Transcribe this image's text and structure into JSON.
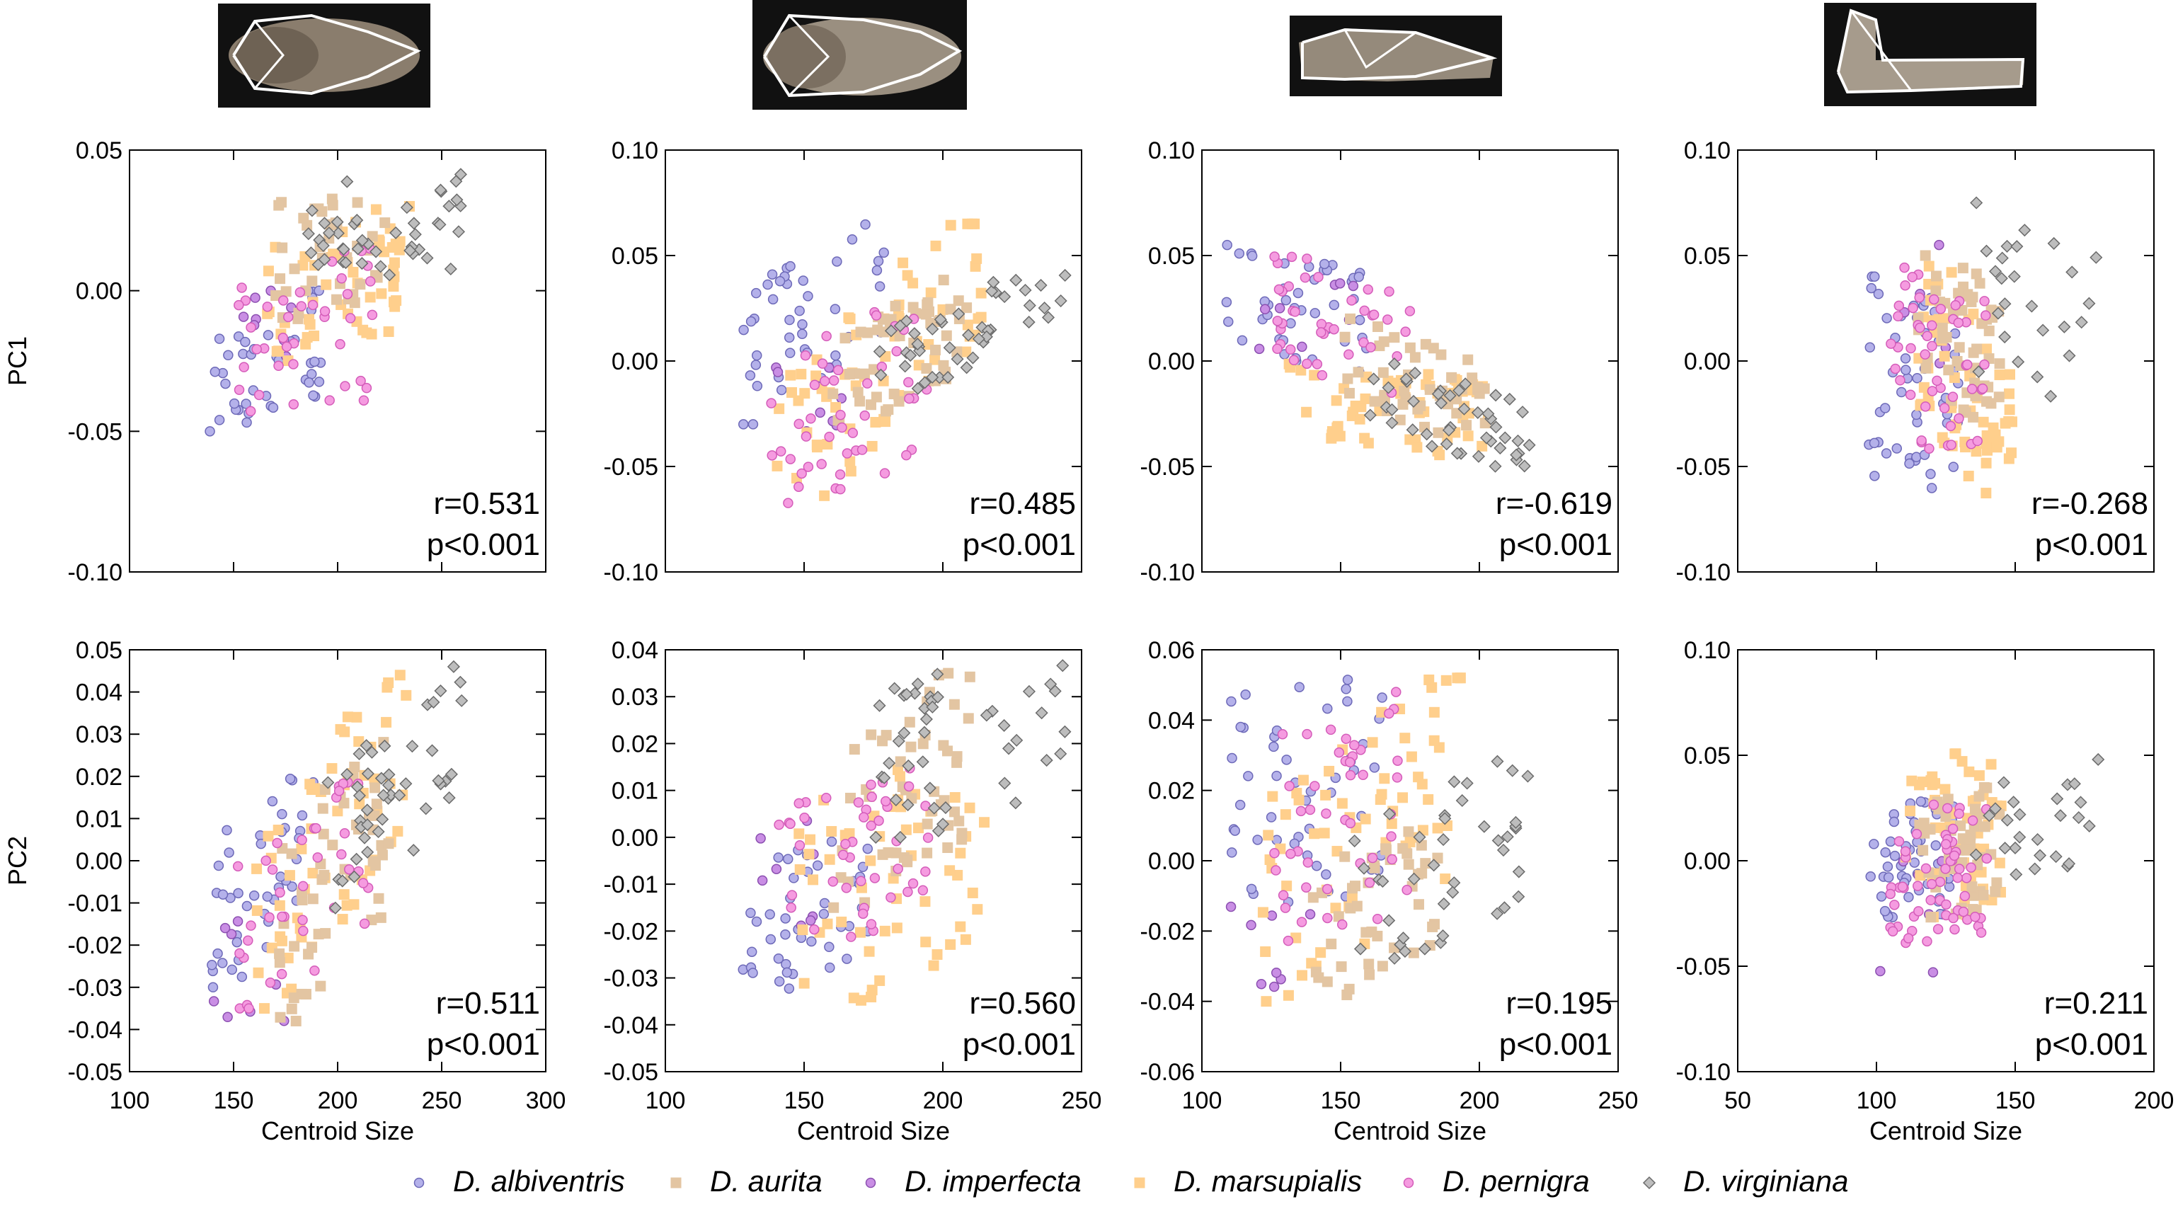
{
  "colors": {
    "D. albiventris": "#b4b1ea",
    "D. aurita": "#e3c5a2",
    "D. imperfecta": "#c98ee4",
    "D. marsupialis": "#ffcf8c",
    "D. pernigra": "#f59be0",
    "D. virginiana": "#bdbdbd"
  },
  "legend": {
    "items": [
      {
        "name": "D. albiventris",
        "shape": "circle"
      },
      {
        "name": "D. aurita",
        "shape": "square"
      },
      {
        "name": "D. imperfecta",
        "shape": "circle"
      },
      {
        "name": "D. marsupialis",
        "shape": "square"
      },
      {
        "name": "D. pernigra",
        "shape": "circle"
      },
      {
        "name": "D. virginiana",
        "shape": "diamond"
      }
    ]
  },
  "row_labels": [
    "PC1",
    "PC2"
  ],
  "chart_data": [
    {
      "type": "scatter",
      "row": 0,
      "col": 0,
      "ylabel": "PC1",
      "xlabel": "",
      "xlim": [
        100,
        300
      ],
      "ylim": [
        -0.1,
        0.05
      ],
      "xticks": [
        150,
        200,
        250
      ],
      "yticks": [
        "0.05",
        "0.00",
        "-0.05",
        "-0.10"
      ],
      "r": "r=0.531",
      "p": "p<0.001",
      "clusters": [
        {
          "species": "D. albiventris",
          "x_range": [
            138,
            192
          ],
          "y_range": [
            -0.05,
            0.0
          ],
          "n": 42,
          "trend": 0.3
        },
        {
          "species": "D. imperfecta",
          "x_range": [
            150,
            185
          ],
          "y_range": [
            -0.025,
            0.01
          ],
          "n": 8,
          "trend": 0.0
        },
        {
          "species": "D. marsupialis",
          "x_range": [
            165,
            235
          ],
          "y_range": [
            -0.025,
            0.03
          ],
          "n": 55,
          "trend": 0.3
        },
        {
          "species": "D. aurita",
          "x_range": [
            170,
            225
          ],
          "y_range": [
            -0.01,
            0.04
          ],
          "n": 40,
          "trend": 0.2
        },
        {
          "species": "D. pernigra",
          "x_range": [
            150,
            220
          ],
          "y_range": [
            -0.045,
            0.015
          ],
          "n": 40,
          "trend": 0.1
        },
        {
          "species": "D. virginiana",
          "x_range": [
            185,
            260
          ],
          "y_range": [
            0.0,
            0.045
          ],
          "n": 45,
          "trend": 0.2
        }
      ]
    },
    {
      "type": "scatter",
      "row": 0,
      "col": 1,
      "ylabel": "",
      "xlabel": "",
      "xlim": [
        100,
        250
      ],
      "ylim": [
        -0.1,
        0.1
      ],
      "xticks": [
        150,
        200
      ],
      "yticks": [
        "0.10",
        "0.05",
        "0.00",
        "-0.05",
        "-0.10"
      ],
      "r": "r=0.485",
      "p": "p<0.001",
      "clusters": [
        {
          "species": "D. albiventris",
          "x_range": [
            128,
            180
          ],
          "y_range": [
            -0.03,
            0.065
          ],
          "n": 45,
          "trend": 0.4
        },
        {
          "species": "D. imperfecta",
          "x_range": [
            135,
            165
          ],
          "y_range": [
            -0.04,
            0.0
          ],
          "n": 8,
          "trend": 0.0
        },
        {
          "species": "D. marsupialis",
          "x_range": [
            140,
            215
          ],
          "y_range": [
            -0.065,
            0.065
          ],
          "n": 65,
          "trend": 0.7
        },
        {
          "species": "D. aurita",
          "x_range": [
            160,
            210
          ],
          "y_range": [
            -0.03,
            0.04
          ],
          "n": 50,
          "trend": 0.5
        },
        {
          "species": "D. pernigra",
          "x_range": [
            138,
            195
          ],
          "y_range": [
            -0.075,
            0.03
          ],
          "n": 45,
          "trend": 0.4
        },
        {
          "species": "D. virginiana",
          "x_range": [
            175,
            245
          ],
          "y_range": [
            -0.015,
            0.045
          ],
          "n": 45,
          "trend": 0.7
        }
      ]
    },
    {
      "type": "scatter",
      "row": 0,
      "col": 2,
      "ylabel": "",
      "xlabel": "",
      "xlim": [
        100,
        250
      ],
      "ylim": [
        -0.1,
        0.1
      ],
      "xticks": [
        150,
        200
      ],
      "yticks": [
        "0.10",
        "0.05",
        "0.00",
        "-0.05",
        "-0.10"
      ],
      "r": "r=-0.619",
      "p": "p<0.001",
      "clusters": [
        {
          "species": "D. albiventris",
          "x_range": [
            108,
            160
          ],
          "y_range": [
            -0.005,
            0.055
          ],
          "n": 45,
          "trend": -0.3
        },
        {
          "species": "D. imperfecta",
          "x_range": [
            120,
            155
          ],
          "y_range": [
            0.0,
            0.04
          ],
          "n": 8,
          "trend": 0.0
        },
        {
          "species": "D. marsupialis",
          "x_range": [
            130,
            205
          ],
          "y_range": [
            -0.045,
            0.0
          ],
          "n": 60,
          "trend": -0.3
        },
        {
          "species": "D. aurita",
          "x_range": [
            150,
            205
          ],
          "y_range": [
            -0.04,
            0.02
          ],
          "n": 45,
          "trend": -0.5
        },
        {
          "species": "D. pernigra",
          "x_range": [
            125,
            175
          ],
          "y_range": [
            -0.015,
            0.05
          ],
          "n": 40,
          "trend": -0.3
        },
        {
          "species": "D. virginiana",
          "x_range": [
            160,
            218
          ],
          "y_range": [
            -0.05,
            0.0
          ],
          "n": 45,
          "trend": -0.5
        }
      ]
    },
    {
      "type": "scatter",
      "row": 0,
      "col": 3,
      "ylabel": "",
      "xlabel": "",
      "xlim": [
        50,
        200
      ],
      "ylim": [
        -0.1,
        0.1
      ],
      "xticks": [
        100,
        150
      ],
      "yticks": [
        "0.10",
        "0.05",
        "0.00",
        "-0.05",
        "-0.10"
      ],
      "r": "r=-0.268",
      "p": "p<0.001",
      "clusters": [
        {
          "species": "D. albiventris",
          "x_range": [
            97,
            130
          ],
          "y_range": [
            -0.07,
            0.04
          ],
          "n": 50,
          "trend": -0.2
        },
        {
          "species": "D. imperfecta",
          "x_range": [
            110,
            130
          ],
          "y_range": [
            -0.02,
            0.065
          ],
          "n": 6,
          "trend": 0.0
        },
        {
          "species": "D. marsupialis",
          "x_range": [
            115,
            150
          ],
          "y_range": [
            -0.075,
            0.05
          ],
          "n": 60,
          "trend": -0.5
        },
        {
          "species": "D. aurita",
          "x_range": [
            115,
            145
          ],
          "y_range": [
            -0.03,
            0.05
          ],
          "n": 50,
          "trend": -0.2
        },
        {
          "species": "D. pernigra",
          "x_range": [
            105,
            140
          ],
          "y_range": [
            -0.05,
            0.045
          ],
          "n": 50,
          "trend": -0.2
        },
        {
          "species": "D. virginiana",
          "x_range": [
            135,
            180
          ],
          "y_range": [
            -0.03,
            0.075
          ],
          "n": 25,
          "trend": -0.3
        }
      ]
    },
    {
      "type": "scatter",
      "row": 1,
      "col": 0,
      "ylabel": "PC2",
      "xlabel": "Centroid Size",
      "xlim": [
        100,
        300
      ],
      "ylim": [
        -0.05,
        0.05
      ],
      "xticks": [
        100,
        150,
        200,
        250,
        300
      ],
      "yticks": [
        "0.05",
        "0.04",
        "0.03",
        "0.02",
        "0.01",
        "0.00",
        "-0.01",
        "-0.02",
        "-0.03",
        "-0.04",
        "-0.05"
      ],
      "r": "r=0.511",
      "p": "p<0.001",
      "clusters": [
        {
          "species": "D. albiventris",
          "x_range": [
            138,
            190
          ],
          "y_range": [
            -0.03,
            0.02
          ],
          "n": 42,
          "trend": 0.4
        },
        {
          "species": "D. imperfecta",
          "x_range": [
            140,
            180
          ],
          "y_range": [
            -0.04,
            -0.01
          ],
          "n": 8,
          "trend": 0.0
        },
        {
          "species": "D. marsupialis",
          "x_range": [
            160,
            235
          ],
          "y_range": [
            -0.035,
            0.044
          ],
          "n": 60,
          "trend": 0.7
        },
        {
          "species": "D. aurita",
          "x_range": [
            170,
            225
          ],
          "y_range": [
            -0.038,
            0.03
          ],
          "n": 50,
          "trend": 0.5
        },
        {
          "species": "D. pernigra",
          "x_range": [
            150,
            215
          ],
          "y_range": [
            -0.035,
            0.02
          ],
          "n": 40,
          "trend": 0.4
        },
        {
          "species": "D. virginiana",
          "x_range": [
            195,
            260
          ],
          "y_range": [
            -0.012,
            0.046
          ],
          "n": 45,
          "trend": 0.6
        }
      ]
    },
    {
      "type": "scatter",
      "row": 1,
      "col": 1,
      "ylabel": "",
      "xlabel": "Centroid Size",
      "xlim": [
        100,
        250
      ],
      "ylim": [
        -0.05,
        0.04
      ],
      "xticks": [
        100,
        150,
        200,
        250
      ],
      "yticks": [
        "0.04",
        "0.03",
        "0.02",
        "0.01",
        "0.00",
        "-0.01",
        "-0.02",
        "-0.03",
        "-0.04",
        "-0.05"
      ],
      "r": "r=0.560",
      "p": "p<0.001",
      "clusters": [
        {
          "species": "D. albiventris",
          "x_range": [
            128,
            175
          ],
          "y_range": [
            -0.034,
            0.0
          ],
          "n": 42,
          "trend": 0.2
        },
        {
          "species": "D. imperfecta",
          "x_range": [
            130,
            160
          ],
          "y_range": [
            -0.02,
            0.01
          ],
          "n": 8,
          "trend": 0.0
        },
        {
          "species": "D. marsupialis",
          "x_range": [
            145,
            215
          ],
          "y_range": [
            -0.04,
            0.02
          ],
          "n": 60,
          "trend": 0.3
        },
        {
          "species": "D. aurita",
          "x_range": [
            160,
            210
          ],
          "y_range": [
            -0.015,
            0.035
          ],
          "n": 50,
          "trend": 0.4
        },
        {
          "species": "D. pernigra",
          "x_range": [
            140,
            195
          ],
          "y_range": [
            -0.025,
            0.015
          ],
          "n": 45,
          "trend": 0.3
        },
        {
          "species": "D. virginiana",
          "x_range": [
            175,
            248
          ],
          "y_range": [
            0.0,
            0.04
          ],
          "n": 45,
          "trend": 0.2
        }
      ]
    },
    {
      "type": "scatter",
      "row": 1,
      "col": 2,
      "ylabel": "",
      "xlabel": "Centroid Size",
      "xlim": [
        100,
        250
      ],
      "ylim": [
        -0.06,
        0.06
      ],
      "xticks": [
        100,
        150,
        200,
        250
      ],
      "yticks": [
        "0.06",
        "0.04",
        "0.02",
        "0.00",
        "-0.02",
        "-0.04",
        "-0.06"
      ],
      "r": "r=0.195",
      "p": "p<0.001",
      "clusters": [
        {
          "species": "D. albiventris",
          "x_range": [
            108,
            165
          ],
          "y_range": [
            -0.015,
            0.053
          ],
          "n": 50,
          "trend": 0.1
        },
        {
          "species": "D. imperfecta",
          "x_range": [
            110,
            140
          ],
          "y_range": [
            -0.04,
            -0.01
          ],
          "n": 8,
          "trend": 0.0
        },
        {
          "species": "D. marsupialis",
          "x_range": [
            120,
            195
          ],
          "y_range": [
            -0.04,
            0.052
          ],
          "n": 65,
          "trend": 0.5
        },
        {
          "species": "D. aurita",
          "x_range": [
            140,
            185
          ],
          "y_range": [
            -0.04,
            0.01
          ],
          "n": 45,
          "trend": 0.3
        },
        {
          "species": "D. pernigra",
          "x_range": [
            125,
            175
          ],
          "y_range": [
            -0.025,
            0.048
          ],
          "n": 45,
          "trend": 0.2
        },
        {
          "species": "D. virginiana",
          "x_range": [
            155,
            218
          ],
          "y_range": [
            -0.03,
            0.03
          ],
          "n": 40,
          "trend": 0.4
        }
      ]
    },
    {
      "type": "scatter",
      "row": 1,
      "col": 3,
      "ylabel": "",
      "xlabel": "Centroid Size",
      "xlim": [
        50,
        200
      ],
      "ylim": [
        -0.1,
        0.1
      ],
      "xticks": [
        50,
        100,
        150,
        200
      ],
      "yticks": [
        "0.10",
        "0.05",
        "0.00",
        "-0.05",
        "-0.10"
      ],
      "r": "r=0.211",
      "p": "p<0.001",
      "clusters": [
        {
          "species": "D. albiventris",
          "x_range": [
            97,
            128
          ],
          "y_range": [
            -0.03,
            0.03
          ],
          "n": 50,
          "trend": 0.1
        },
        {
          "species": "D. imperfecta",
          "x_range": [
            98,
            125
          ],
          "y_range": [
            -0.055,
            0.01
          ],
          "n": 6,
          "trend": 0.0
        },
        {
          "species": "D. marsupialis",
          "x_range": [
            110,
            145
          ],
          "y_range": [
            -0.033,
            0.056
          ],
          "n": 55,
          "trend": 0.2
        },
        {
          "species": "D. aurita",
          "x_range": [
            115,
            145
          ],
          "y_range": [
            -0.03,
            0.035
          ],
          "n": 50,
          "trend": 0.2
        },
        {
          "species": "D. pernigra",
          "x_range": [
            105,
            140
          ],
          "y_range": [
            -0.04,
            0.03
          ],
          "n": 60,
          "trend": 0.1
        },
        {
          "species": "D. virginiana",
          "x_range": [
            135,
            180
          ],
          "y_range": [
            -0.015,
            0.048
          ],
          "n": 25,
          "trend": 0.3
        }
      ]
    }
  ]
}
